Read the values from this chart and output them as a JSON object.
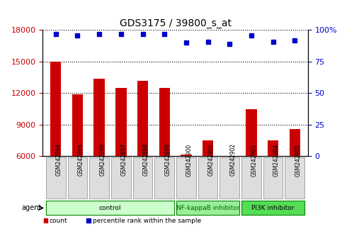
{
  "title": "GDS3175 / 39800_s_at",
  "samples": [
    "GSM242894",
    "GSM242895",
    "GSM242896",
    "GSM242897",
    "GSM242898",
    "GSM242899",
    "GSM242900",
    "GSM242901",
    "GSM242902",
    "GSM242903",
    "GSM242904",
    "GSM242905"
  ],
  "counts": [
    15000,
    11900,
    13400,
    12500,
    13200,
    12500,
    6200,
    7500,
    6050,
    10500,
    7500,
    8600
  ],
  "percentile": [
    97,
    96,
    97,
    97,
    97,
    97,
    90,
    91,
    89,
    96,
    91,
    92
  ],
  "bar_color": "#cc0000",
  "dot_color": "#0000cc",
  "ylim_left": [
    6000,
    18000
  ],
  "yticks_left": [
    6000,
    9000,
    12000,
    15000,
    18000
  ],
  "ylim_right": [
    0,
    100
  ],
  "yticks_right": [
    0,
    25,
    50,
    75,
    100
  ],
  "groups": [
    {
      "label": "control",
      "start": 0,
      "end": 5,
      "color": "#ccffcc",
      "text_color": "#000000"
    },
    {
      "label": "NF-kappaB inhibitor",
      "start": 6,
      "end": 8,
      "color": "#99ee99",
      "text_color": "#006600"
    },
    {
      "label": "PI3K inhibitor",
      "start": 9,
      "end": 11,
      "color": "#55dd55",
      "text_color": "#000000"
    }
  ],
  "agent_label": "agent",
  "legend_count_label": "count",
  "legend_pct_label": "percentile rank within the sample",
  "xlabel_color_left": "#cc0000",
  "xlabel_color_right": "#0000cc",
  "grid_color": "#000000",
  "background_color": "#ffffff",
  "plot_bg_color": "#ffffff"
}
